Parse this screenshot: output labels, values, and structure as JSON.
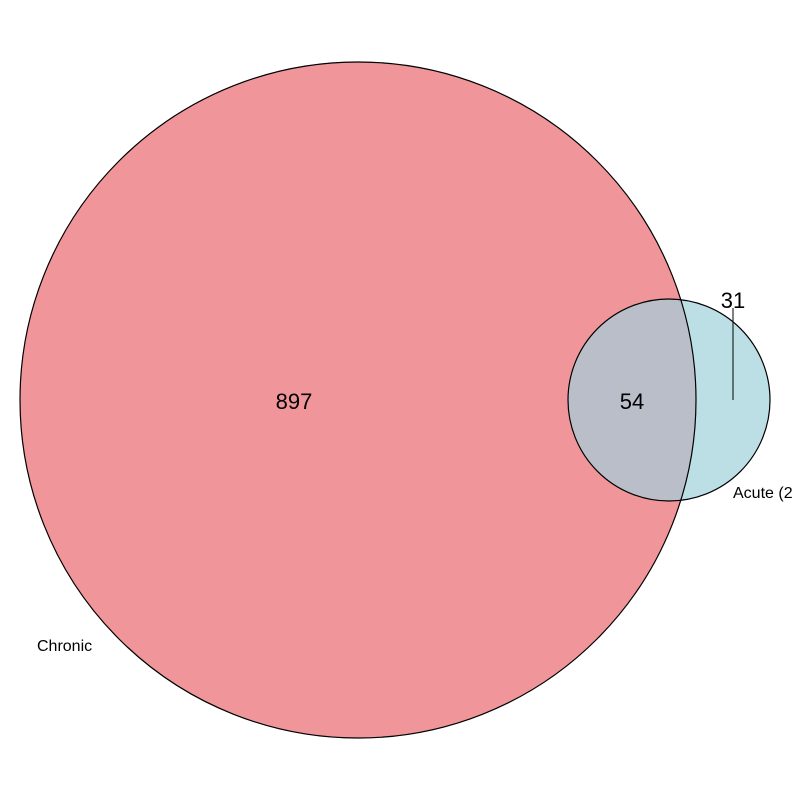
{
  "diagram": {
    "type": "venn",
    "sets": [
      {
        "label": "Chronic",
        "color": "#f0969a"
      },
      {
        "label": "Acute (2",
        "color": "#bcdfe6"
      }
    ],
    "regions": {
      "chronic_only": "897",
      "overlap": "54",
      "acute_only": "31"
    },
    "colors": {
      "overlap": "#b9bec8",
      "outline": "#000000"
    }
  }
}
